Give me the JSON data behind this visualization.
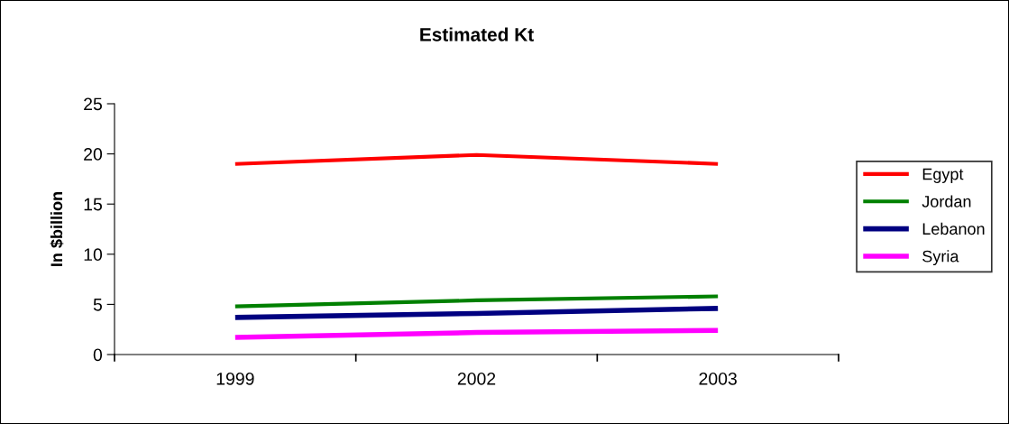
{
  "chart_data": {
    "type": "line",
    "title": "Estimated Kt",
    "ylabel": "In $billion",
    "categories": [
      "1999",
      "2002",
      "2003"
    ],
    "series": [
      {
        "name": "Egypt",
        "color": "#ff0000",
        "values": [
          19,
          19.9,
          19
        ]
      },
      {
        "name": "Jordan",
        "color": "#008000",
        "values": [
          4.8,
          5.4,
          5.8
        ]
      },
      {
        "name": "Lebanon",
        "color": "#000080",
        "values": [
          3.7,
          4.1,
          4.6
        ]
      },
      {
        "name": "Syria",
        "color": "#ff00ff",
        "values": [
          1.7,
          2.2,
          2.4
        ]
      }
    ],
    "ylim": [
      0,
      25
    ],
    "yticks": [
      0,
      5,
      10,
      15,
      20,
      25
    ],
    "grid": false,
    "legend": "right",
    "marker": "none",
    "line_style": "solid"
  }
}
